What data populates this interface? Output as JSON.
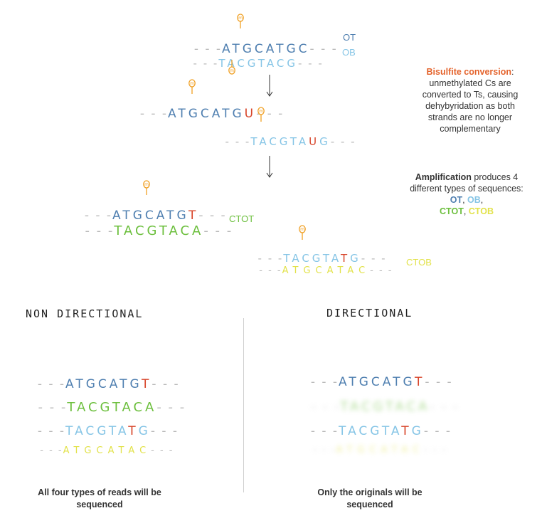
{
  "colors": {
    "ot": "#4f7fb0",
    "ob": "#86c5e6",
    "ctot": "#6cbf3d",
    "ctob": "#e2e24a",
    "converted": "#d8462b",
    "methyl": "#f0a024",
    "dash": "#b9b9b9",
    "title_orange": "#e4632c"
  },
  "icons": {
    "methyl_mark": "methyl-pin-icon",
    "arrow": "down-arrow-icon"
  },
  "top": {
    "ot_strand": [
      "ATGC",
      "ATGC"
    ],
    "ob_strand": "TACGTACG",
    "ot_label": "OT",
    "ob_label": "OB"
  },
  "conversion": {
    "strand_a": [
      "ATGCATG",
      "U"
    ],
    "strand_b": [
      "TACGTA",
      "U",
      "G"
    ]
  },
  "amplification": {
    "strand_a_top": [
      "ATGCATG",
      "T"
    ],
    "strand_a_bottom": "TACGTACA",
    "ctot_label": "CTOT",
    "strand_b_top": [
      "TACGTA",
      "T",
      "G"
    ],
    "strand_b_bottom": "ATGCATAC",
    "ctob_label": "CTOB"
  },
  "notes": {
    "bisulfite_title": "Bisulfite conversion",
    "bisulfite_rest": ": unmethylated Cs are converted to Ts, causing dehybyridation as both strands are no longer complementary",
    "amp_title": "Amplification",
    "amp_rest": " produces 4 different types of sequences: ",
    "amp_ot": "OT",
    "amp_sep1": ", ",
    "amp_ob": "OB",
    "amp_sep2": ",",
    "amp_ctot": "CTOT",
    "amp_sep3": ", ",
    "amp_ctob": "CTOB"
  },
  "non_directional": {
    "heading": "NON DIRECTIONAL",
    "reads": {
      "ot": [
        "ATGCATG",
        "T"
      ],
      "ctot": "TACGTACA",
      "ob": [
        "TACGTA",
        "T",
        "G"
      ],
      "ctob": "ATGCATAC"
    },
    "caption": "All four types of reads will be sequenced"
  },
  "directional": {
    "heading": "DIRECTIONAL",
    "reads": {
      "ot": [
        "ATGCATG",
        "T"
      ],
      "ctot": "TACGTACA",
      "ob": [
        "TACGTA",
        "T",
        "G"
      ],
      "ctob": "ATGCATAC"
    },
    "caption": "Only the originals will be sequenced"
  },
  "dashes": "- - -"
}
